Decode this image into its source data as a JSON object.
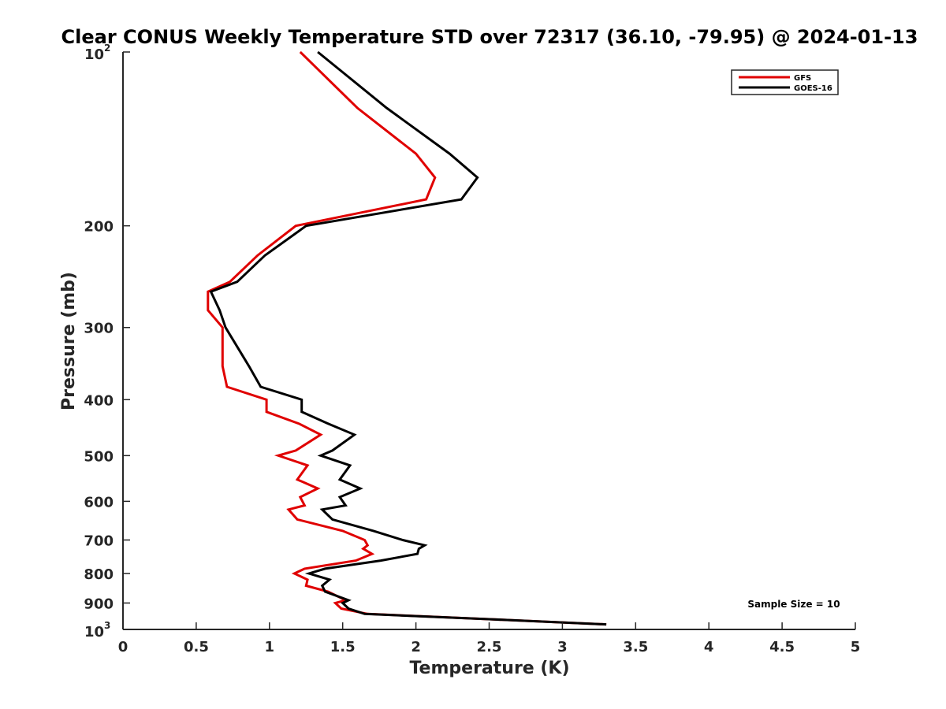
{
  "chart_data": {
    "type": "line",
    "title": "Clear CONUS Weekly Temperature STD over 72317 (36.10, -79.95) @ 2024-01-13",
    "xlabel": "Temperature (K)",
    "ylabel": "Pressure (mb)",
    "xlim": [
      0,
      5
    ],
    "ylim": [
      100,
      1000
    ],
    "y_scale": "log",
    "y_reversed": true,
    "grid": false,
    "legend_position": "top-right",
    "x_ticks": [
      "0",
      "0.5",
      "1",
      "1.5",
      "2",
      "2.5",
      "3",
      "3.5",
      "4",
      "4.5",
      "5"
    ],
    "y_ticks": [
      {
        "value": 100,
        "base": "10",
        "exp": "2"
      },
      {
        "value": 200,
        "label": "200"
      },
      {
        "value": 300,
        "label": "300"
      },
      {
        "value": 400,
        "label": "400"
      },
      {
        "value": 500,
        "label": "500"
      },
      {
        "value": 600,
        "label": "600"
      },
      {
        "value": 700,
        "label": "700"
      },
      {
        "value": 800,
        "label": "800"
      },
      {
        "value": 900,
        "label": "900"
      },
      {
        "value": 1000,
        "base": "10",
        "exp": "3"
      }
    ],
    "annotation": "Sample Size = 10",
    "series": [
      {
        "name": "GFS",
        "color": "#e00000",
        "points": [
          [
            1.21,
            100
          ],
          [
            1.6,
            125
          ],
          [
            2.0,
            150
          ],
          [
            2.13,
            165
          ],
          [
            2.07,
            180
          ],
          [
            1.18,
            200
          ],
          [
            0.92,
            225
          ],
          [
            0.73,
            250
          ],
          [
            0.58,
            260
          ],
          [
            0.58,
            280
          ],
          [
            0.68,
            300
          ],
          [
            0.68,
            350
          ],
          [
            0.71,
            380
          ],
          [
            0.98,
            400
          ],
          [
            0.98,
            420
          ],
          [
            1.2,
            440
          ],
          [
            1.35,
            460
          ],
          [
            1.18,
            490
          ],
          [
            1.06,
            500
          ],
          [
            1.26,
            520
          ],
          [
            1.19,
            550
          ],
          [
            1.33,
            570
          ],
          [
            1.21,
            590
          ],
          [
            1.24,
            610
          ],
          [
            1.13,
            620
          ],
          [
            1.19,
            645
          ],
          [
            1.5,
            675
          ],
          [
            1.65,
            700
          ],
          [
            1.67,
            715
          ],
          [
            1.64,
            725
          ],
          [
            1.7,
            740
          ],
          [
            1.59,
            760
          ],
          [
            1.24,
            785
          ],
          [
            1.17,
            800
          ],
          [
            1.26,
            820
          ],
          [
            1.25,
            840
          ],
          [
            1.4,
            860
          ],
          [
            1.52,
            890
          ],
          [
            1.45,
            900
          ],
          [
            1.49,
            920
          ],
          [
            1.67,
            940
          ],
          [
            2.5,
            960
          ],
          [
            3.3,
            980
          ]
        ]
      },
      {
        "name": "GOES-16",
        "color": "#000000",
        "points": [
          [
            1.33,
            100
          ],
          [
            1.8,
            125
          ],
          [
            2.23,
            150
          ],
          [
            2.42,
            165
          ],
          [
            2.31,
            180
          ],
          [
            1.25,
            200
          ],
          [
            0.97,
            225
          ],
          [
            0.78,
            250
          ],
          [
            0.6,
            260
          ],
          [
            0.66,
            280
          ],
          [
            0.7,
            300
          ],
          [
            0.86,
            350
          ],
          [
            0.94,
            380
          ],
          [
            1.22,
            400
          ],
          [
            1.22,
            420
          ],
          [
            1.4,
            440
          ],
          [
            1.58,
            460
          ],
          [
            1.43,
            490
          ],
          [
            1.35,
            500
          ],
          [
            1.55,
            520
          ],
          [
            1.48,
            550
          ],
          [
            1.62,
            570
          ],
          [
            1.48,
            590
          ],
          [
            1.52,
            610
          ],
          [
            1.36,
            620
          ],
          [
            1.43,
            645
          ],
          [
            1.71,
            675
          ],
          [
            1.91,
            700
          ],
          [
            2.06,
            715
          ],
          [
            2.02,
            725
          ],
          [
            2.01,
            740
          ],
          [
            1.76,
            760
          ],
          [
            1.38,
            785
          ],
          [
            1.27,
            800
          ],
          [
            1.41,
            820
          ],
          [
            1.36,
            840
          ],
          [
            1.38,
            860
          ],
          [
            1.54,
            890
          ],
          [
            1.5,
            900
          ],
          [
            1.54,
            920
          ],
          [
            1.65,
            940
          ],
          [
            2.5,
            960
          ],
          [
            3.3,
            980
          ]
        ]
      }
    ]
  }
}
